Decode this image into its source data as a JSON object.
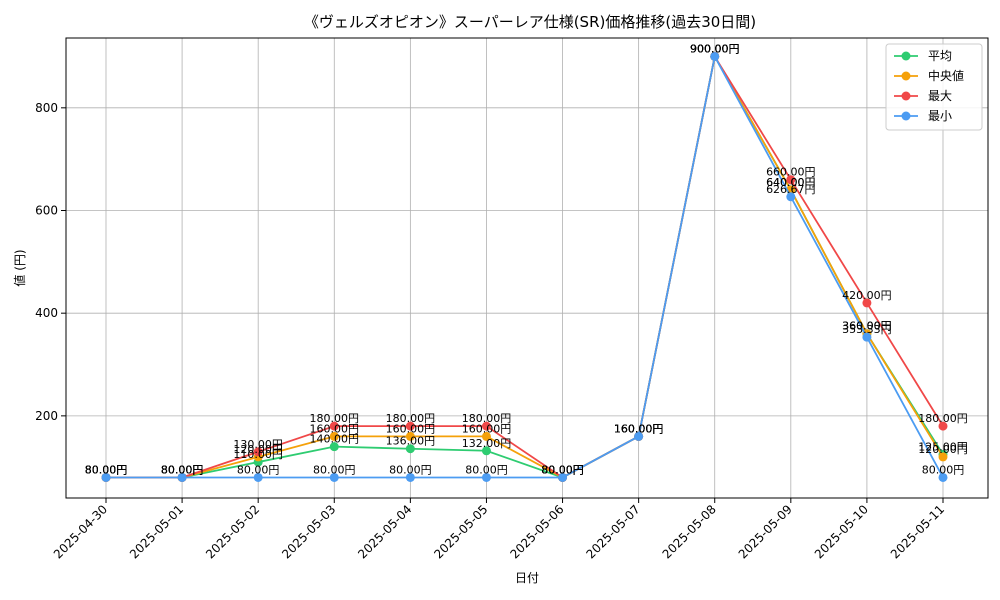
{
  "chart_data": {
    "type": "line",
    "title": "《ヴェルズオピオン》スーパーレア仕様(SR)価格推移(過去30日間)",
    "xlabel": "日付",
    "ylabel": "値 (円)",
    "x": [
      "2025-04-30",
      "2025-05-01",
      "2025-05-02",
      "2025-05-03",
      "2025-05-04",
      "2025-05-05",
      "2025-05-06",
      "2025-05-07",
      "2025-05-08",
      "2025-05-09",
      "2025-05-10",
      "2025-05-11"
    ],
    "ylim": [
      40,
      936
    ],
    "yticks": [
      200,
      400,
      600,
      800
    ],
    "grid": true,
    "legend_position": "top-right",
    "label_suffix": "円",
    "series": [
      {
        "name": "平均",
        "color": "#2ecc71",
        "values": [
          80,
          80,
          110,
          140,
          136,
          132,
          80,
          160,
          900,
          640,
          360,
          125
        ]
      },
      {
        "name": "中央値",
        "color": "#f5a10a",
        "values": [
          80,
          80,
          120,
          160,
          160,
          160,
          80,
          160,
          900,
          640,
          360,
          120
        ]
      },
      {
        "name": "最大",
        "color": "#f04848",
        "values": [
          80,
          80,
          130,
          180,
          180,
          180,
          80,
          160,
          900,
          660,
          420,
          180
        ]
      },
      {
        "name": "最小",
        "color": "#4c9cf2",
        "values": [
          80,
          80,
          80,
          80,
          80,
          80,
          80,
          160,
          900,
          626.67,
          353.33,
          80
        ]
      }
    ]
  }
}
